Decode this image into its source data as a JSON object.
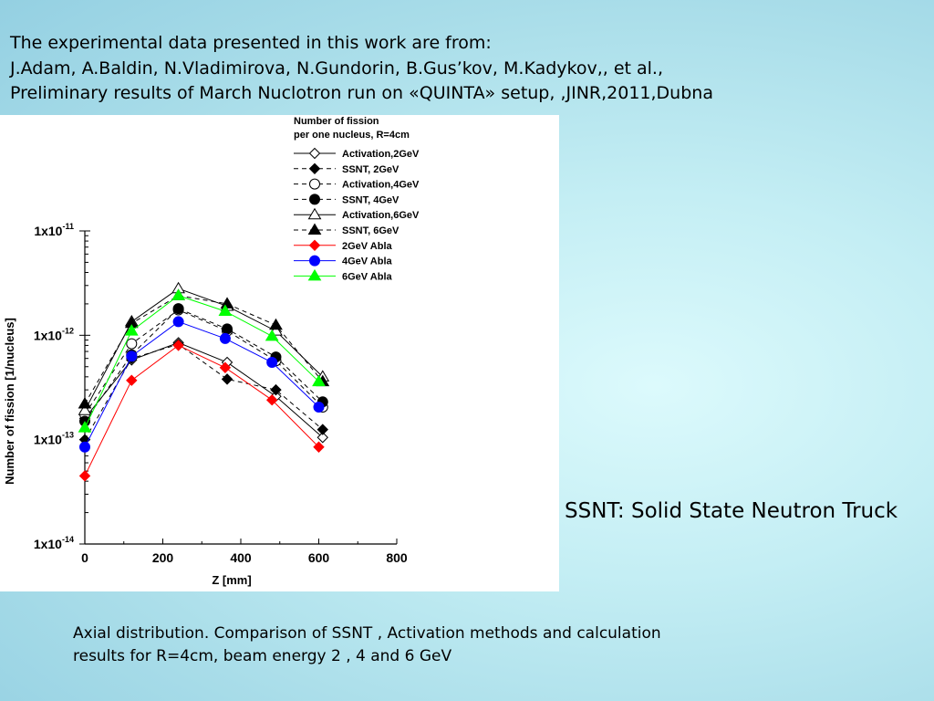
{
  "header": {
    "line1": "The experimental data presented in this work are from:",
    "line2": "J.Adam, A.Baldin, N.Vladimirova, N.Gundorin, B.Gus’kov, M.Kadykov,, et al.,",
    "line3": "Preliminary results of March Nuclotron run on «QUINTA» setup, ,JINR,2011,Dubna"
  },
  "side_note": "SSNT: Solid State Neutron Truck",
  "caption": {
    "line1": "Axial distribution. Comparison of SSNT , Activation methods and calculation",
    "line2": "results for R=4cm, beam energy 2 , 4 and 6 GeV"
  },
  "chart_data": {
    "type": "line",
    "title": "",
    "legend_title": [
      "Number of fission",
      "per one nucleus, R=4cm"
    ],
    "legend_position": "top-right",
    "xlabel": "Z [mm]",
    "ylabel": "Number of fission [1/nucleus]",
    "xlim": [
      0,
      800
    ],
    "x_ticks": [
      "0",
      "200",
      "400",
      "600",
      "800"
    ],
    "x_tick_values": [
      0,
      200,
      400,
      600,
      800
    ],
    "ylim": [
      1e-14,
      1e-11
    ],
    "y_scale": "log",
    "y_ticks": [
      {
        "value": 1e-11,
        "base": "1x10",
        "exp": "-11"
      },
      {
        "value": 1e-12,
        "base": "1x10",
        "exp": "-12"
      },
      {
        "value": 1e-13,
        "base": "1x10",
        "exp": "-13"
      },
      {
        "value": 1e-14,
        "base": "1x10",
        "exp": "-14"
      }
    ],
    "grid": false,
    "series": [
      {
        "name": "Activation,2GeV",
        "color": "#000000",
        "dash": "solid",
        "marker": "diamond-open",
        "x": [
          0,
          120,
          240,
          365,
          490,
          610
        ],
        "y": [
          1.6e-13,
          5.8e-13,
          8.5e-13,
          5.5e-13,
          2.6e-13,
          1.05e-13
        ]
      },
      {
        "name": "SSNT, 2GeV",
        "color": "#000000",
        "dash": "dashed",
        "marker": "diamond-filled",
        "x": [
          0,
          120,
          240,
          365,
          490,
          610
        ],
        "y": [
          1e-13,
          6e-13,
          8.2e-13,
          3.8e-13,
          3e-13,
          1.25e-13
        ]
      },
      {
        "name": "Activation,4GeV",
        "color": "#000000",
        "dash": "dashed",
        "marker": "circle-open",
        "x": [
          0,
          120,
          240,
          365,
          490,
          610
        ],
        "y": [
          1.75e-13,
          8.3e-13,
          1.75e-12,
          1.1e-12,
          5.7e-13,
          2.05e-13
        ]
      },
      {
        "name": "SSNT, 4GeV",
        "color": "#000000",
        "dash": "dashed",
        "marker": "circle-filled",
        "x": [
          0,
          120,
          240,
          365,
          490,
          610
        ],
        "y": [
          1.5e-13,
          6.5e-13,
          1.8e-12,
          1.15e-12,
          6.2e-13,
          2.3e-13
        ]
      },
      {
        "name": "Activation,6GeV",
        "color": "#000000",
        "dash": "solid",
        "marker": "triangle-open",
        "x": [
          0,
          120,
          240,
          365,
          490,
          610
        ],
        "y": [
          1.9e-13,
          1.35e-12,
          2.8e-12,
          1.9e-12,
          1.1e-12,
          4e-13
        ]
      },
      {
        "name": "SSNT, 6GeV",
        "color": "#000000",
        "dash": "dashed",
        "marker": "triangle-filled",
        "x": [
          0,
          120,
          240,
          365,
          490,
          610
        ],
        "y": [
          2.2e-13,
          1.3e-12,
          2.4e-12,
          2e-12,
          1.25e-12,
          3.6e-13
        ]
      },
      {
        "name": "2GeV Abla",
        "color": "#ff0000",
        "dash": "solid",
        "marker": "diamond-filled",
        "x": [
          0,
          120,
          240,
          360,
          480,
          600
        ],
        "y": [
          4.5e-14,
          3.7e-13,
          8e-13,
          4.9e-13,
          2.4e-13,
          8.5e-14
        ]
      },
      {
        "name": "4GeV Abla",
        "color": "#0000ff",
        "dash": "solid",
        "marker": "circle-filled",
        "x": [
          0,
          120,
          240,
          360,
          480,
          600
        ],
        "y": [
          8.5e-14,
          6.3e-13,
          1.35e-12,
          9.3e-13,
          5.5e-13,
          2.05e-13
        ]
      },
      {
        "name": "6GeV Abla",
        "color": "#00ff00",
        "dash": "solid",
        "marker": "triangle-filled",
        "x": [
          0,
          120,
          240,
          360,
          480,
          600
        ],
        "y": [
          1.3e-13,
          1.1e-12,
          2.4e-12,
          1.7e-12,
          9.8e-13,
          3.6e-13
        ]
      }
    ]
  }
}
